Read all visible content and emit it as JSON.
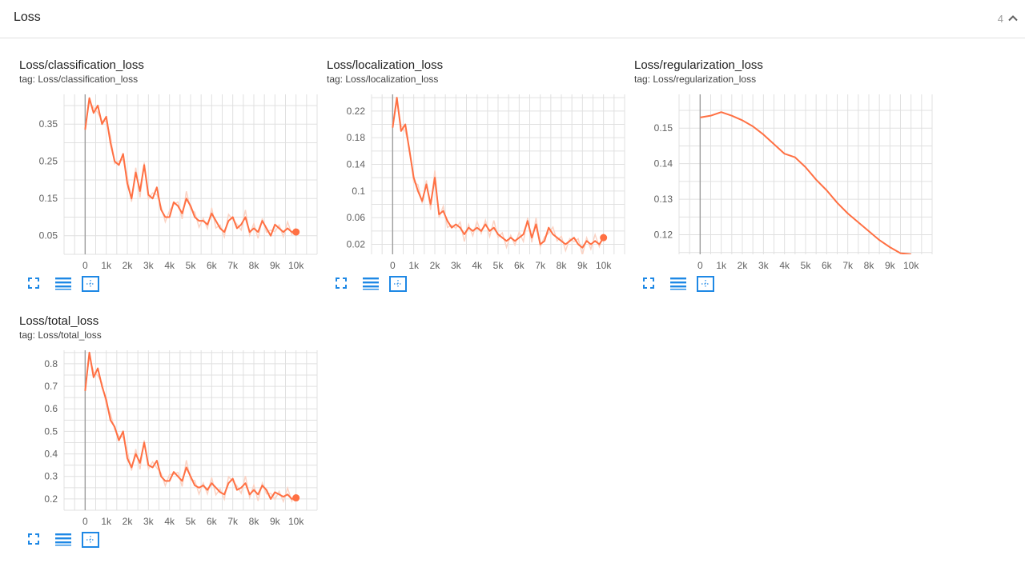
{
  "section": {
    "title": "Loss",
    "count": "4"
  },
  "icons": {
    "collapse": "chevron-up-icon",
    "fullscreen": "fullscreen-icon",
    "log_scale": "list-lines-icon",
    "fit_domain": "fit-domain-icon"
  },
  "colors": {
    "series": "#ff7043",
    "raw": "#fbd3c4",
    "grid": "#e0e0e0",
    "axis": "#9e9e9e",
    "icons": "#1e88e5"
  },
  "chart_data": [
    {
      "type": "line",
      "title": "Loss/classification_loss",
      "tag": "tag: Loss/classification_loss",
      "xlim": [
        -1000,
        11000
      ],
      "ylim": [
        0.0,
        0.43
      ],
      "x_ticks": [
        0,
        1000,
        2000,
        3000,
        4000,
        5000,
        6000,
        7000,
        8000,
        9000,
        10000
      ],
      "x_tick_labels": [
        "0",
        "1k",
        "2k",
        "3k",
        "4k",
        "5k",
        "6k",
        "7k",
        "8k",
        "9k",
        "10k"
      ],
      "y_ticks": [
        0.05,
        0.15,
        0.25,
        0.35
      ],
      "y_tick_labels": [
        "0.05",
        "0.15",
        "0.25",
        "0.35"
      ],
      "series": [
        {
          "x": [
            0,
            200,
            400,
            600,
            800,
            1000,
            1200,
            1400,
            1600,
            1800,
            2000,
            2200,
            2400,
            2600,
            2800,
            3000,
            3200,
            3400,
            3600,
            3800,
            4000,
            4200,
            4400,
            4600,
            4800,
            5000,
            5200,
            5400,
            5600,
            5800,
            6000,
            6200,
            6400,
            6600,
            6800,
            7000,
            7200,
            7400,
            7600,
            7800,
            8000,
            8200,
            8400,
            8600,
            8800,
            9000,
            9200,
            9400,
            9600,
            9800,
            10000
          ],
          "y": [
            0.335,
            0.42,
            0.38,
            0.4,
            0.35,
            0.37,
            0.3,
            0.25,
            0.24,
            0.27,
            0.19,
            0.15,
            0.22,
            0.17,
            0.24,
            0.16,
            0.15,
            0.18,
            0.12,
            0.1,
            0.1,
            0.14,
            0.13,
            0.11,
            0.15,
            0.13,
            0.1,
            0.09,
            0.09,
            0.08,
            0.11,
            0.09,
            0.07,
            0.06,
            0.09,
            0.1,
            0.07,
            0.08,
            0.1,
            0.06,
            0.07,
            0.06,
            0.09,
            0.07,
            0.05,
            0.08,
            0.07,
            0.06,
            0.07,
            0.06,
            0.06
          ]
        }
      ]
    },
    {
      "type": "line",
      "title": "Loss/localization_loss",
      "tag": "tag: Loss/localization_loss",
      "xlim": [
        -1000,
        11000
      ],
      "ylim": [
        0.005,
        0.245
      ],
      "x_ticks": [
        0,
        1000,
        2000,
        3000,
        4000,
        5000,
        6000,
        7000,
        8000,
        9000,
        10000
      ],
      "x_tick_labels": [
        "0",
        "1k",
        "2k",
        "3k",
        "4k",
        "5k",
        "6k",
        "7k",
        "8k",
        "9k",
        "10k"
      ],
      "y_ticks": [
        0.02,
        0.06,
        0.1,
        0.14,
        0.18,
        0.22
      ],
      "y_tick_labels": [
        "0.02",
        "0.06",
        "0.1",
        "0.14",
        "0.18",
        "0.22"
      ],
      "series": [
        {
          "x": [
            0,
            200,
            400,
            600,
            800,
            1000,
            1200,
            1400,
            1600,
            1800,
            2000,
            2200,
            2400,
            2600,
            2800,
            3000,
            3200,
            3400,
            3600,
            3800,
            4000,
            4200,
            4400,
            4600,
            4800,
            5000,
            5200,
            5400,
            5600,
            5800,
            6000,
            6200,
            6400,
            6600,
            6800,
            7000,
            7200,
            7400,
            7600,
            7800,
            8000,
            8200,
            8400,
            8600,
            8800,
            9000,
            9200,
            9400,
            9600,
            9800,
            10000
          ],
          "y": [
            0.195,
            0.24,
            0.19,
            0.2,
            0.16,
            0.12,
            0.1,
            0.085,
            0.11,
            0.08,
            0.12,
            0.065,
            0.07,
            0.055,
            0.045,
            0.05,
            0.045,
            0.035,
            0.045,
            0.04,
            0.045,
            0.04,
            0.05,
            0.04,
            0.045,
            0.035,
            0.03,
            0.025,
            0.03,
            0.025,
            0.03,
            0.035,
            0.055,
            0.03,
            0.05,
            0.02,
            0.025,
            0.045,
            0.035,
            0.03,
            0.025,
            0.02,
            0.025,
            0.03,
            0.02,
            0.015,
            0.025,
            0.02,
            0.025,
            0.02,
            0.03
          ]
        }
      ]
    },
    {
      "type": "line",
      "title": "Loss/regularization_loss",
      "tag": "tag: Loss/regularization_loss",
      "xlim": [
        -1000,
        11000
      ],
      "ylim": [
        0.1145,
        0.1595
      ],
      "x_ticks": [
        0,
        1000,
        2000,
        3000,
        4000,
        5000,
        6000,
        7000,
        8000,
        9000,
        10000
      ],
      "x_tick_labels": [
        "0",
        "1k",
        "2k",
        "3k",
        "4k",
        "5k",
        "6k",
        "7k",
        "8k",
        "9k",
        "10k"
      ],
      "y_ticks": [
        0.12,
        0.13,
        0.14,
        0.15
      ],
      "y_tick_labels": [
        "0.12",
        "0.13",
        "0.14",
        "0.15"
      ],
      "series": [
        {
          "x": [
            0,
            500,
            1000,
            1500,
            2000,
            2500,
            3000,
            3500,
            4000,
            4500,
            5000,
            5500,
            6000,
            6500,
            7000,
            7500,
            8000,
            8500,
            9000,
            9500,
            10000
          ],
          "y": [
            0.153,
            0.1535,
            0.1545,
            0.1535,
            0.1522,
            0.1505,
            0.1482,
            0.1455,
            0.1428,
            0.1418,
            0.139,
            0.1355,
            0.1325,
            0.129,
            0.126,
            0.1235,
            0.121,
            0.1185,
            0.1165,
            0.1148,
            0.1145
          ]
        }
      ]
    },
    {
      "type": "line",
      "title": "Loss/total_loss",
      "tag": "tag: Loss/total_loss",
      "xlim": [
        -1000,
        11000
      ],
      "ylim": [
        0.15,
        0.86
      ],
      "x_ticks": [
        0,
        1000,
        2000,
        3000,
        4000,
        5000,
        6000,
        7000,
        8000,
        9000,
        10000
      ],
      "x_tick_labels": [
        "0",
        "1k",
        "2k",
        "3k",
        "4k",
        "5k",
        "6k",
        "7k",
        "8k",
        "9k",
        "10k"
      ],
      "y_ticks": [
        0.2,
        0.3,
        0.4,
        0.5,
        0.6,
        0.7,
        0.8
      ],
      "y_tick_labels": [
        "0.2",
        "0.3",
        "0.4",
        "0.5",
        "0.6",
        "0.7",
        "0.8"
      ],
      "series": [
        {
          "x": [
            0,
            200,
            400,
            600,
            800,
            1000,
            1200,
            1400,
            1600,
            1800,
            2000,
            2200,
            2400,
            2600,
            2800,
            3000,
            3200,
            3400,
            3600,
            3800,
            4000,
            4200,
            4400,
            4600,
            4800,
            5000,
            5200,
            5400,
            5600,
            5800,
            6000,
            6200,
            6400,
            6600,
            6800,
            7000,
            7200,
            7400,
            7600,
            7800,
            8000,
            8200,
            8400,
            8600,
            8800,
            9000,
            9200,
            9400,
            9600,
            9800,
            10000
          ],
          "y": [
            0.68,
            0.85,
            0.74,
            0.78,
            0.7,
            0.64,
            0.55,
            0.52,
            0.46,
            0.5,
            0.38,
            0.34,
            0.4,
            0.36,
            0.45,
            0.35,
            0.34,
            0.37,
            0.3,
            0.28,
            0.28,
            0.32,
            0.3,
            0.28,
            0.34,
            0.3,
            0.26,
            0.25,
            0.26,
            0.24,
            0.27,
            0.25,
            0.23,
            0.22,
            0.27,
            0.29,
            0.24,
            0.25,
            0.27,
            0.22,
            0.24,
            0.22,
            0.26,
            0.24,
            0.2,
            0.23,
            0.22,
            0.21,
            0.22,
            0.2,
            0.205
          ]
        }
      ]
    }
  ]
}
